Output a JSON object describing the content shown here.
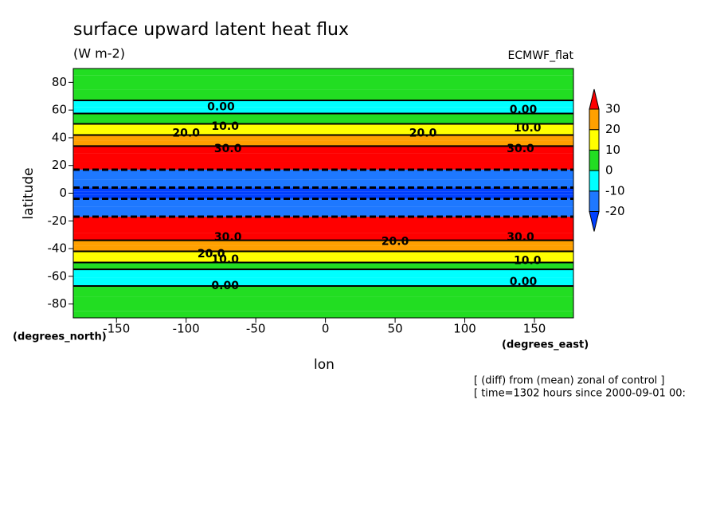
{
  "chart_data": {
    "type": "contour",
    "title": "surface upward latent heat flux",
    "subtitle": "(W m-2)",
    "dataset": "ECMWF_flat",
    "xlabel": "lon",
    "ylabel": "latitude",
    "xunits": "(degrees_east)",
    "yunits": "(degrees_north)",
    "notes": [
      "[ (diff) from (mean) zonal of control ]",
      "[ time=1302 hours since 2000-09-01 00:"
    ],
    "xlim": [
      -181,
      178
    ],
    "ylim": [
      -90,
      90
    ],
    "xticks": [
      -150,
      -100,
      -50,
      0,
      50,
      100,
      150
    ],
    "yticks": [
      -80,
      -60,
      -40,
      -20,
      0,
      20,
      40,
      60,
      80
    ],
    "lat": [
      90,
      80,
      70,
      64,
      60,
      55,
      52,
      48,
      44,
      40,
      36,
      32,
      26,
      20,
      14,
      6,
      2,
      0,
      -2,
      -6,
      -14,
      -20,
      -26,
      -32,
      -36,
      -40,
      -44,
      -48,
      -52,
      -58,
      -64,
      -70,
      -80,
      -90
    ],
    "values": [
      5,
      5,
      4,
      -2,
      -4,
      3,
      8,
      15,
      18,
      24,
      27,
      33,
      38,
      36,
      -14,
      -16,
      -21,
      -22,
      -21,
      -16,
      -14,
      36,
      38,
      33,
      25,
      22,
      15,
      12,
      5,
      -4,
      -3,
      4,
      5,
      5
    ],
    "levels": [
      -20,
      -10,
      0,
      10,
      20,
      30
    ],
    "colors": [
      "#0040ff",
      "#1e78ff",
      "#00ffff",
      "#22dd22",
      "#ffff00",
      "#ffa000",
      "#ff0000"
    ],
    "contour_labels": [
      {
        "label": "0.00",
        "lon": -75,
        "lat": 62
      },
      {
        "label": "0.00",
        "lon": 142,
        "lat": 60
      },
      {
        "label": "0.00",
        "lon": -72,
        "lat": -67
      },
      {
        "label": "0.00",
        "lon": 142,
        "lat": -64
      },
      {
        "label": "10.0",
        "lon": -72,
        "lat": 48
      },
      {
        "label": "10.0",
        "lon": 145,
        "lat": 47
      },
      {
        "label": "10.0",
        "lon": -72,
        "lat": -48
      },
      {
        "label": "10.0",
        "lon": 145,
        "lat": -49
      },
      {
        "label": "20.0",
        "lon": -100,
        "lat": 43
      },
      {
        "label": "20.0",
        "lon": 70,
        "lat": 43
      },
      {
        "label": "20.0",
        "lon": -82,
        "lat": -44
      },
      {
        "label": "20.0",
        "lon": 50,
        "lat": -35
      },
      {
        "label": "30.0",
        "lon": -70,
        "lat": 32
      },
      {
        "label": "30.0",
        "lon": 140,
        "lat": 32
      },
      {
        "label": "30.0",
        "lon": -70,
        "lat": -32
      },
      {
        "label": "30.0",
        "lon": 140,
        "lat": -32
      }
    ]
  }
}
